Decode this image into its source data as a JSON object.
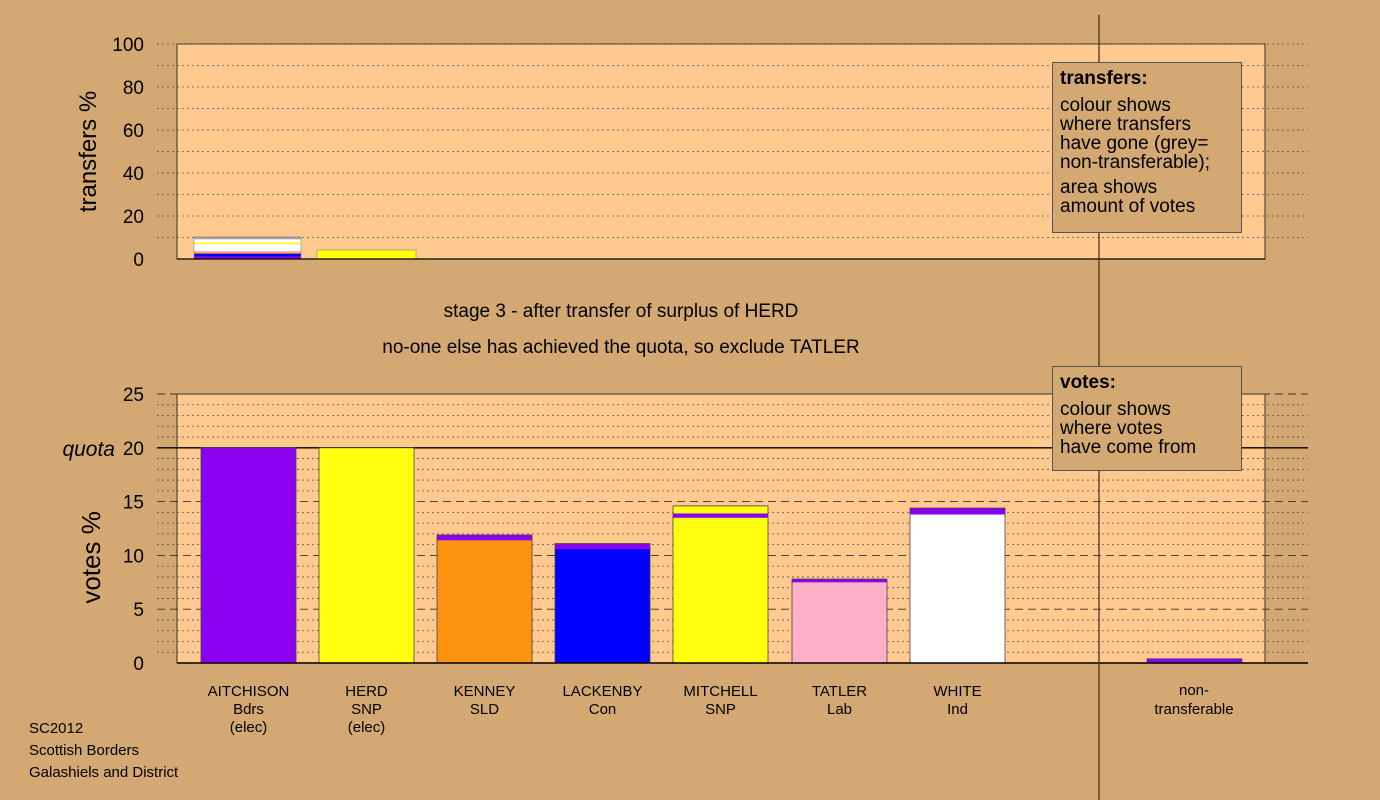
{
  "colors": {
    "background": "#d4a872",
    "plot_area": "#ffc990",
    "axis": "#000000",
    "Bdrs": "#8b00f0",
    "SNP": "#ffff10",
    "SLD": "#ff9210",
    "Con": "#0000ff",
    "Lab": "#ffafc8",
    "Ind": "#ffffff",
    "nontransferable": "#8b00f0"
  },
  "legend_transfers": {
    "title": "transfers:",
    "lines": [
      "colour shows\nwhere transfers\nhave gone (grey=\nnon-transferable);",
      "area shows\namount of votes"
    ]
  },
  "legend_votes": {
    "title": "votes:",
    "lines": [
      "colour shows\nwhere votes\nhave come from"
    ]
  },
  "captions": {
    "stage": "stage 3 - after transfer of surplus of HERD",
    "note": "no-one else has achieved the quota, so exclude TATLER"
  },
  "footer": {
    "line1": "SC2012",
    "line2": "Scottish Borders",
    "line3": "Galashiels and District"
  },
  "chart_data": [
    {
      "type": "bar",
      "title": "",
      "ylabel": "transfers %",
      "ylim": [
        0,
        100
      ],
      "yticks": [
        0,
        20,
        40,
        60,
        80,
        100
      ],
      "stacked": true,
      "categories": [
        "AITCHISON",
        "HERD"
      ],
      "bars": [
        {
          "category": "AITCHISON",
          "segments": [
            {
              "color": "Bdrs",
              "value": 1.2
            },
            {
              "color": "Con",
              "value": 1.3
            },
            {
              "color": "SLD",
              "value": 0.6
            },
            {
              "color": "Lab",
              "value": 0.6
            },
            {
              "color": "Ind",
              "value": 3.2
            },
            {
              "color": "SNP",
              "value": 0.7
            },
            {
              "color": "Ind",
              "value": 1.6
            },
            {
              "color": "grey",
              "value": 1.1
            }
          ]
        },
        {
          "category": "HERD",
          "segments": [
            {
              "color": "SNP",
              "value": 4.2
            }
          ]
        }
      ]
    },
    {
      "type": "bar",
      "title": "",
      "ylabel": "votes %",
      "ylim": [
        0,
        25
      ],
      "yticks": [
        0,
        5,
        10,
        15,
        20,
        25
      ],
      "quota": 20,
      "quota_label": "quota",
      "stacked": true,
      "categories": [
        {
          "name": "AITCHISON",
          "party": "Bdrs",
          "status": "(elec)"
        },
        {
          "name": "HERD",
          "party": "SNP",
          "status": "(elec)"
        },
        {
          "name": "KENNEY",
          "party": "SLD",
          "status": ""
        },
        {
          "name": "LACKENBY",
          "party": "Con",
          "status": ""
        },
        {
          "name": "MITCHELL",
          "party": "SNP",
          "status": ""
        },
        {
          "name": "TATLER",
          "party": "Lab",
          "status": ""
        },
        {
          "name": "WHITE",
          "party": "Ind",
          "status": ""
        }
      ],
      "nontransferable_label": [
        "non-",
        "transferable"
      ],
      "bars": [
        {
          "segments": [
            {
              "color": "Bdrs",
              "value": 20.0
            }
          ]
        },
        {
          "segments": [
            {
              "color": "SNP",
              "value": 20.0
            }
          ]
        },
        {
          "segments": [
            {
              "color": "SLD",
              "value": 11.4
            },
            {
              "color": "Bdrs",
              "value": 0.5
            }
          ]
        },
        {
          "segments": [
            {
              "color": "Con",
              "value": 10.6
            },
            {
              "color": "Bdrs",
              "value": 0.5
            }
          ]
        },
        {
          "segments": [
            {
              "color": "SNP",
              "value": 13.5
            },
            {
              "color": "Bdrs",
              "value": 0.4
            },
            {
              "color": "SNP",
              "value": 0.7
            }
          ]
        },
        {
          "segments": [
            {
              "color": "Lab",
              "value": 7.5
            },
            {
              "color": "Bdrs",
              "value": 0.3
            }
          ]
        },
        {
          "segments": [
            {
              "color": "Ind",
              "value": 13.8
            },
            {
              "color": "Bdrs",
              "value": 0.6
            }
          ]
        }
      ],
      "nontransferable": {
        "segments": [
          {
            "color": "nontransferable",
            "value": 0.4
          }
        ]
      }
    }
  ]
}
